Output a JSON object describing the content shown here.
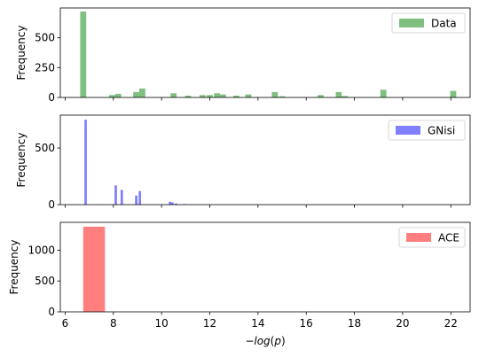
{
  "chart_data": [
    {
      "type": "bar",
      "series_name": "Data",
      "color": "#008000",
      "opacity": 0.5,
      "ylabel": "Frequency",
      "xlim": [
        5.8,
        22.8
      ],
      "ylim": [
        0,
        750
      ],
      "yticks": [
        0,
        250,
        500
      ],
      "legend": "top-right",
      "bin_width": 0.25,
      "bins": [
        {
          "x": 6.75,
          "value": 720
        },
        {
          "x": 7.95,
          "value": 20
        },
        {
          "x": 8.2,
          "value": 30
        },
        {
          "x": 8.95,
          "value": 45
        },
        {
          "x": 9.2,
          "value": 75
        },
        {
          "x": 10.5,
          "value": 35
        },
        {
          "x": 11.1,
          "value": 15
        },
        {
          "x": 11.7,
          "value": 20
        },
        {
          "x": 12.0,
          "value": 20
        },
        {
          "x": 12.3,
          "value": 35
        },
        {
          "x": 12.55,
          "value": 25
        },
        {
          "x": 13.1,
          "value": 15
        },
        {
          "x": 13.6,
          "value": 25
        },
        {
          "x": 14.7,
          "value": 45
        },
        {
          "x": 15.0,
          "value": 10
        },
        {
          "x": 16.6,
          "value": 20
        },
        {
          "x": 17.35,
          "value": 45
        },
        {
          "x": 17.6,
          "value": 12
        },
        {
          "x": 19.2,
          "value": 65
        },
        {
          "x": 22.1,
          "value": 55
        }
      ]
    },
    {
      "type": "bar",
      "series_name": "GNisi",
      "color": "#0000ff",
      "opacity": 0.5,
      "ylabel": "Frequency",
      "xlim": [
        5.8,
        22.8
      ],
      "ylim": [
        0,
        790
      ],
      "yticks": [
        0,
        500
      ],
      "legend": "top-right",
      "bin_width": 0.1,
      "bins": [
        {
          "x": 6.85,
          "value": 750
        },
        {
          "x": 8.1,
          "value": 170
        },
        {
          "x": 8.35,
          "value": 130
        },
        {
          "x": 8.95,
          "value": 80
        },
        {
          "x": 9.1,
          "value": 120
        },
        {
          "x": 10.35,
          "value": 25
        },
        {
          "x": 10.45,
          "value": 20
        },
        {
          "x": 10.6,
          "value": 10
        },
        {
          "x": 10.95,
          "value": 5
        }
      ]
    },
    {
      "type": "bar",
      "series_name": "ACE",
      "color": "#ff0000",
      "opacity": 0.5,
      "ylabel": "Frequency",
      "xlabel": "−log(p)",
      "xlim": [
        5.8,
        22.8
      ],
      "ylim": [
        0,
        1450
      ],
      "yticks": [
        0,
        500,
        1000
      ],
      "xticks": [
        6,
        8,
        10,
        12,
        14,
        16,
        18,
        20,
        22
      ],
      "legend": "top-right",
      "bin_width": 0.9,
      "bins": [
        {
          "x": 7.2,
          "value": 1380
        }
      ]
    }
  ]
}
